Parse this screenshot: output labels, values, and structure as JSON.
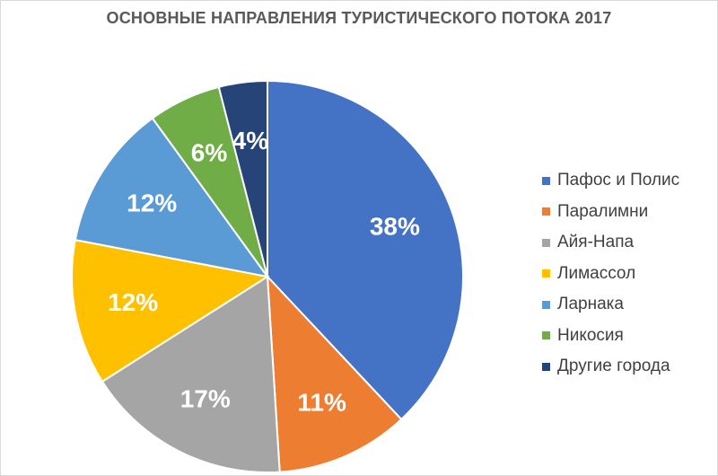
{
  "chart_data": {
    "type": "pie",
    "title": "ОСНОВНЫЕ НАПРАВЛЕНИЯ ТУРИСТИЧЕСКОГО ПОТОКА 2017",
    "slices": [
      {
        "name": "Пафос и Полис",
        "value": 38,
        "label": "38%",
        "color": "#4472C4"
      },
      {
        "name": "Паралимни",
        "value": 11,
        "label": "11%",
        "color": "#ED7D31"
      },
      {
        "name": "Айя-Напа",
        "value": 17,
        "label": "17%",
        "color": "#A5A5A5"
      },
      {
        "name": "Лимассол",
        "value": 12,
        "label": "12%",
        "color": "#FFC000"
      },
      {
        "name": "Ларнака",
        "value": 12,
        "label": "12%",
        "color": "#5B9BD5"
      },
      {
        "name": "Никосия",
        "value": 6,
        "label": "6%",
        "color": "#70AD47"
      },
      {
        "name": "Другие города",
        "value": 4,
        "label": "4%",
        "color": "#264478"
      }
    ],
    "legend_position": "right",
    "start_angle": "top",
    "direction": "clockwise"
  }
}
